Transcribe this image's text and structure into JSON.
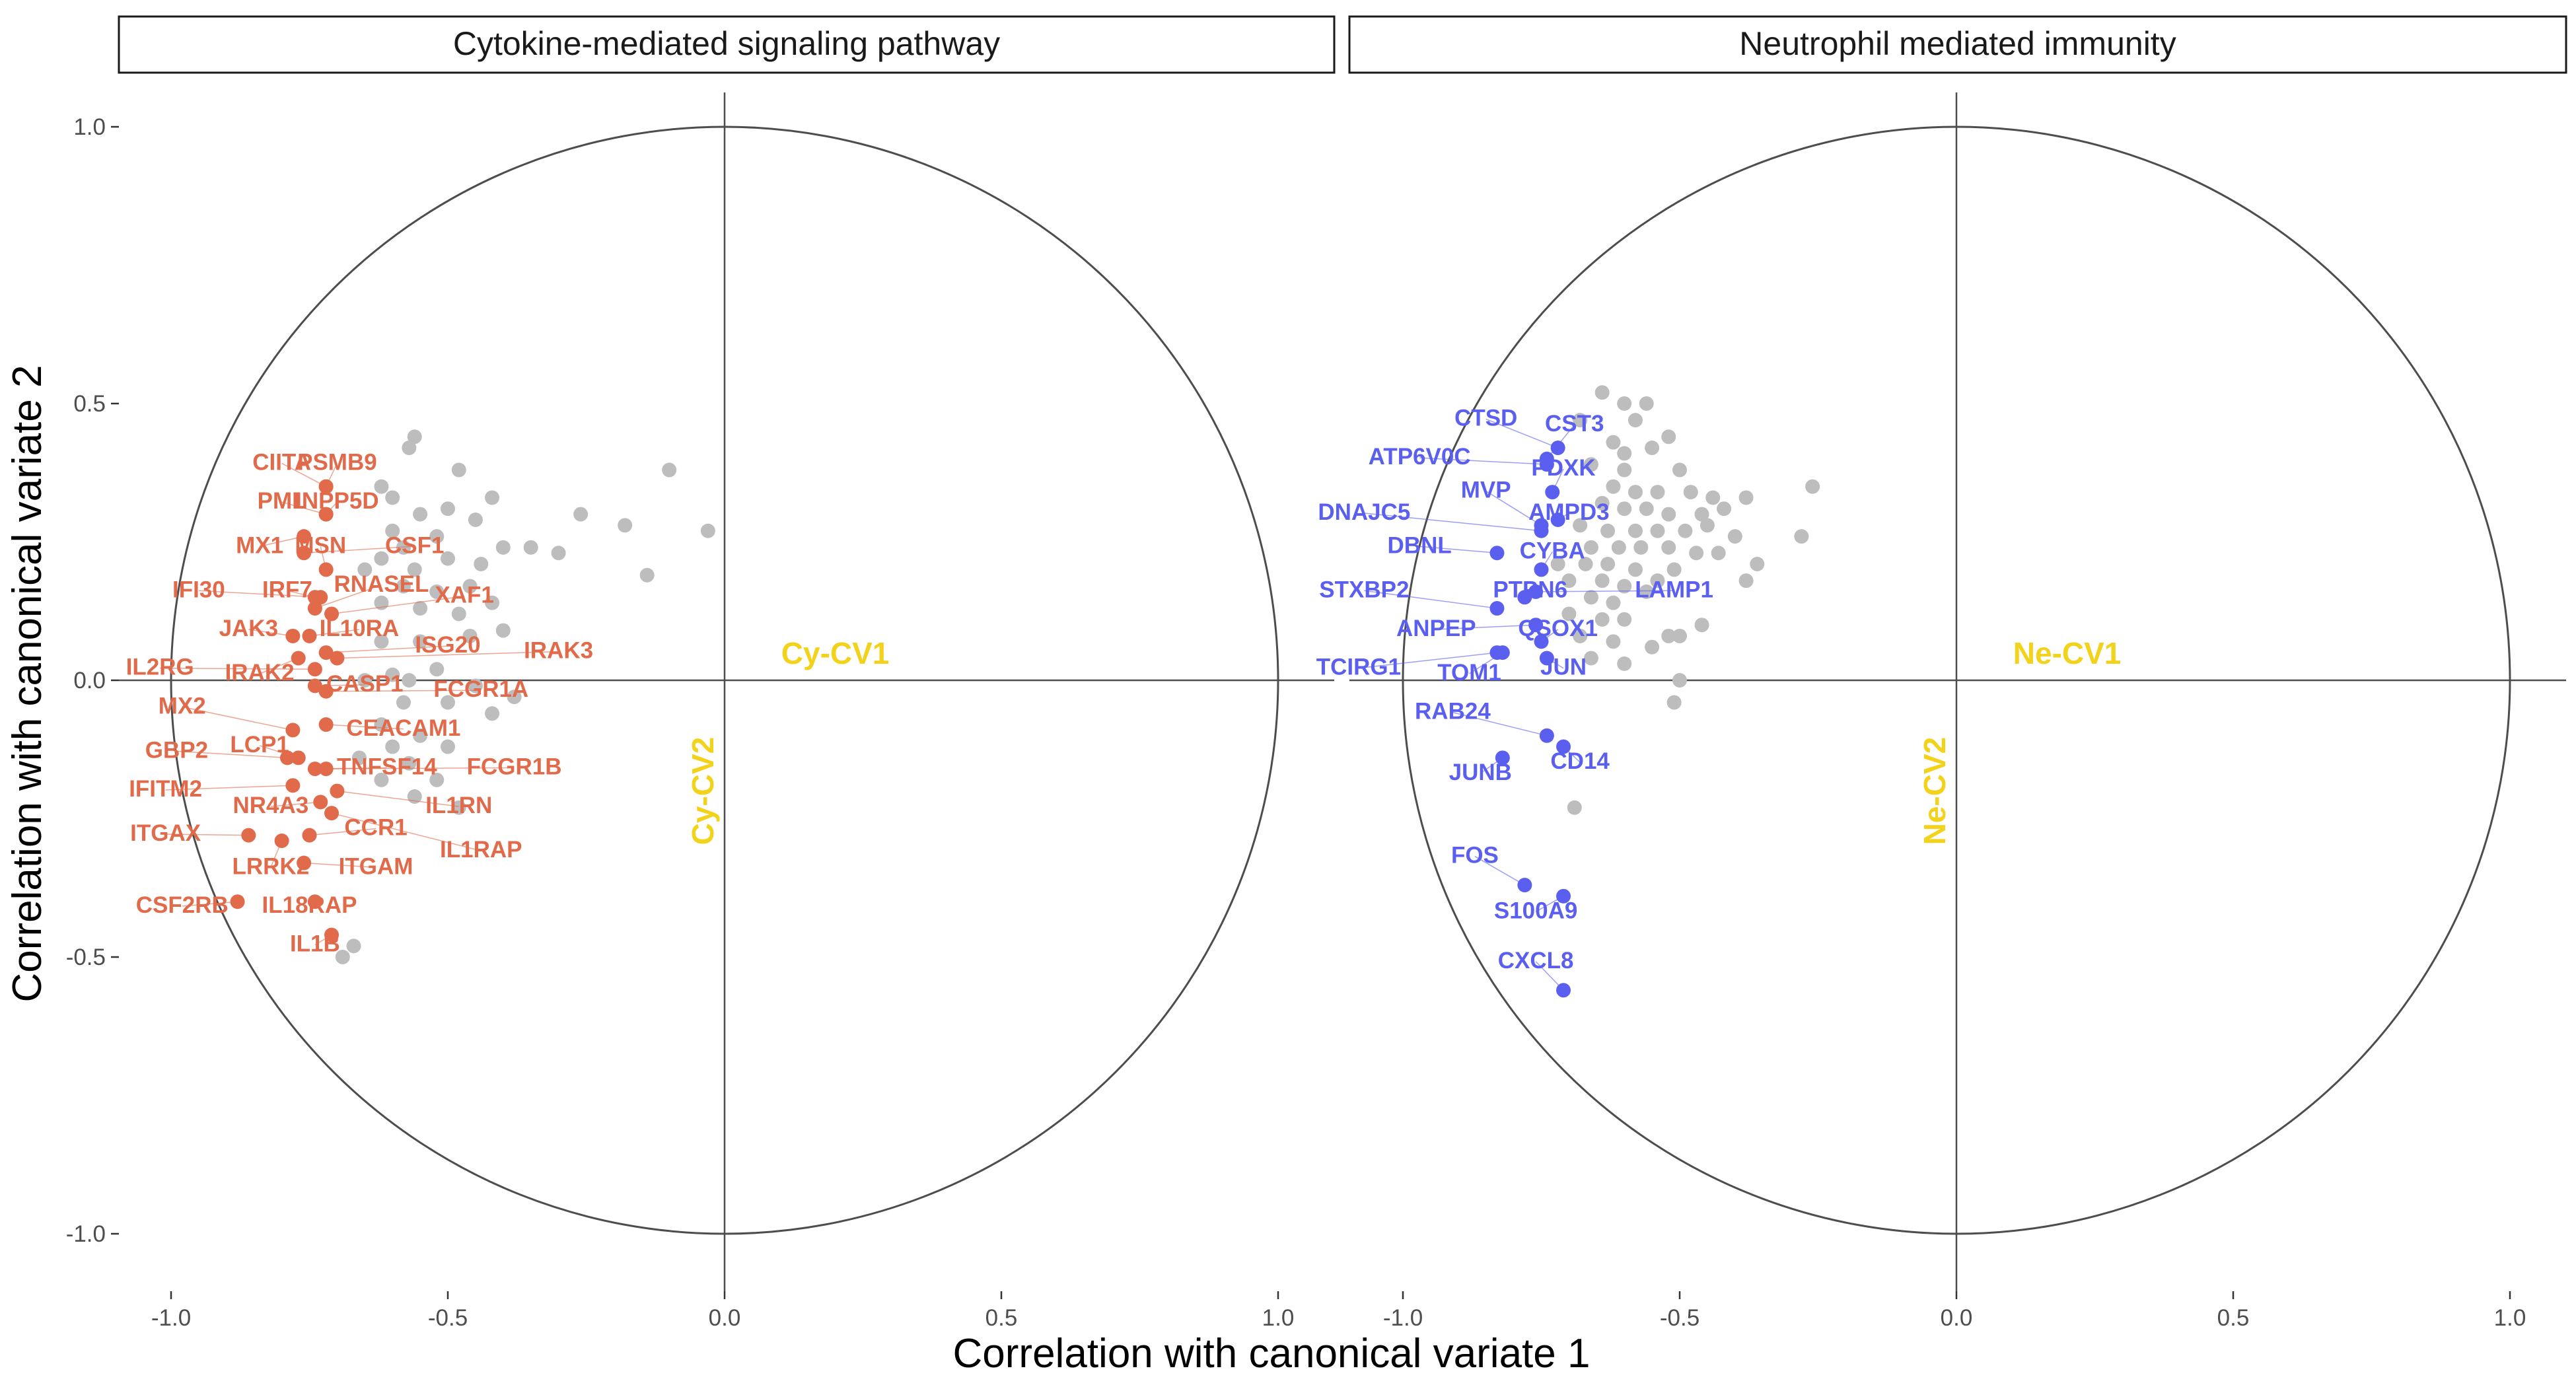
{
  "chart_data": {
    "type": "scatter",
    "xlabel": "Correlation with canonical variate 1",
    "ylabel": "Correlation with canonical variate 2",
    "xlim": [
      -1.1,
      1.1
    ],
    "ylim": [
      -1.1,
      1.1
    ],
    "x_ticks": [
      -1.0,
      -0.5,
      0.0,
      0.5,
      1.0
    ],
    "y_ticks": [
      1.0,
      0.5,
      0.0,
      -0.5,
      -1.0
    ],
    "x_tick_labels": [
      "-1.0",
      "-0.5",
      "0.0",
      "0.5",
      "1.0"
    ],
    "y_tick_labels": [
      "1.0",
      "0.5",
      "0.0",
      "-0.5",
      "-1.0"
    ],
    "grid": false,
    "unit_circle": true,
    "colors": {
      "grey_points": "#bdbdbd",
      "cytokine": "#e06a4a",
      "neutrophil": "#5b5ff0",
      "cv_label": "#f2d21b"
    },
    "panels": [
      {
        "title": "Cytokine-mediated signaling pathway",
        "cv_x_label": "Cy-CV1",
        "cv_y_label": "Cy-CV2",
        "highlight_color": "#e06a4a",
        "grey_points": [
          [
            -0.56,
            0.44
          ],
          [
            -0.57,
            0.42
          ],
          [
            -0.48,
            0.38
          ],
          [
            -0.62,
            0.35
          ],
          [
            -0.6,
            0.33
          ],
          [
            -0.5,
            0.31
          ],
          [
            -0.42,
            0.33
          ],
          [
            -0.1,
            0.38
          ],
          [
            -0.26,
            0.3
          ],
          [
            -0.18,
            0.28
          ],
          [
            -0.03,
            0.27
          ],
          [
            -0.55,
            0.3
          ],
          [
            -0.45,
            0.29
          ],
          [
            -0.52,
            0.26
          ],
          [
            -0.4,
            0.24
          ],
          [
            -0.35,
            0.24
          ],
          [
            -0.3,
            0.23
          ],
          [
            -0.14,
            0.19
          ],
          [
            -0.6,
            0.27
          ],
          [
            -0.58,
            0.24
          ],
          [
            -0.62,
            0.22
          ],
          [
            -0.56,
            0.2
          ],
          [
            -0.5,
            0.22
          ],
          [
            -0.44,
            0.21
          ],
          [
            -0.65,
            0.2
          ],
          [
            -0.58,
            0.17
          ],
          [
            -0.52,
            0.16
          ],
          [
            -0.46,
            0.17
          ],
          [
            -0.62,
            0.14
          ],
          [
            -0.55,
            0.13
          ],
          [
            -0.48,
            0.12
          ],
          [
            -0.42,
            0.14
          ],
          [
            -0.4,
            0.09
          ],
          [
            -0.46,
            0.08
          ],
          [
            -0.55,
            0.07
          ],
          [
            -0.62,
            0.07
          ],
          [
            -0.52,
            0.02
          ],
          [
            -0.6,
            0.01
          ],
          [
            -0.65,
            0.0
          ],
          [
            -0.57,
            0.0
          ],
          [
            -0.45,
            -0.01
          ],
          [
            -0.38,
            -0.03
          ],
          [
            -0.42,
            -0.06
          ],
          [
            -0.5,
            -0.04
          ],
          [
            -0.58,
            -0.04
          ],
          [
            -0.62,
            -0.08
          ],
          [
            -0.55,
            -0.1
          ],
          [
            -0.5,
            -0.12
          ],
          [
            -0.6,
            -0.12
          ],
          [
            -0.66,
            -0.14
          ],
          [
            -0.57,
            -0.15
          ],
          [
            -0.52,
            -0.18
          ],
          [
            -0.62,
            -0.18
          ],
          [
            -0.56,
            -0.21
          ],
          [
            -0.48,
            -0.23
          ],
          [
            -0.67,
            -0.48
          ],
          [
            -0.69,
            -0.5
          ]
        ],
        "points": [
          {
            "label": "PSMB9",
            "x": -0.72,
            "y": 0.35,
            "lx": -0.7,
            "ly": 0.38
          },
          {
            "label": "CIITA",
            "x": -0.72,
            "y": 0.35,
            "lx": -0.8,
            "ly": 0.38
          },
          {
            "label": "PML",
            "x": -0.72,
            "y": 0.3,
            "lx": -0.8,
            "ly": 0.31
          },
          {
            "label": "INPP5D",
            "x": -0.72,
            "y": 0.3,
            "lx": -0.7,
            "ly": 0.31
          },
          {
            "label": "MX1",
            "x": -0.76,
            "y": 0.26,
            "lx": -0.84,
            "ly": 0.23
          },
          {
            "label": "MSN",
            "x": -0.72,
            "y": 0.2,
            "lx": -0.73,
            "ly": 0.23
          },
          {
            "label": "CSF1",
            "x": -0.76,
            "y": 0.23,
            "lx": -0.56,
            "ly": 0.23
          },
          {
            "label": "IFI30",
            "x": -0.73,
            "y": 0.15,
            "lx": -0.95,
            "ly": 0.15
          },
          {
            "label": "IRF7",
            "x": -0.74,
            "y": 0.15,
            "lx": -0.79,
            "ly": 0.15
          },
          {
            "label": "RNASEL",
            "x": -0.74,
            "y": 0.13,
            "lx": -0.62,
            "ly": 0.16
          },
          {
            "label": "XAF1",
            "x": -0.71,
            "y": 0.12,
            "lx": -0.47,
            "ly": 0.14
          },
          {
            "label": "JAK3",
            "x": -0.78,
            "y": 0.08,
            "lx": -0.86,
            "ly": 0.08
          },
          {
            "label": "IL10RA",
            "x": -0.75,
            "y": 0.08,
            "lx": -0.66,
            "ly": 0.08
          },
          {
            "label": "ISG20",
            "x": -0.72,
            "y": 0.05,
            "lx": -0.5,
            "ly": 0.05
          },
          {
            "label": "IRAK3",
            "x": -0.7,
            "y": 0.04,
            "lx": -0.3,
            "ly": 0.04
          },
          {
            "label": "IL2RG",
            "x": -0.74,
            "y": 0.02,
            "lx": -1.02,
            "ly": 0.01
          },
          {
            "label": "IRAK2",
            "x": -0.77,
            "y": 0.04,
            "lx": -0.84,
            "ly": 0.0
          },
          {
            "label": "CASP1",
            "x": -0.74,
            "y": -0.01,
            "lx": -0.65,
            "ly": -0.02
          },
          {
            "label": "FCGR1A",
            "x": -0.72,
            "y": -0.02,
            "lx": -0.44,
            "ly": -0.03
          },
          {
            "label": "MX2",
            "x": -0.78,
            "y": -0.09,
            "lx": -0.98,
            "ly": -0.06
          },
          {
            "label": "CEACAM1",
            "x": -0.72,
            "y": -0.08,
            "lx": -0.58,
            "ly": -0.1
          },
          {
            "label": "GBP2",
            "x": -0.79,
            "y": -0.14,
            "lx": -0.99,
            "ly": -0.14
          },
          {
            "label": "LCP1",
            "x": -0.77,
            "y": -0.14,
            "lx": -0.84,
            "ly": -0.13
          },
          {
            "label": "TNFSF14",
            "x": -0.74,
            "y": -0.16,
            "lx": -0.61,
            "ly": -0.17
          },
          {
            "label": "FCGR1B",
            "x": -0.72,
            "y": -0.16,
            "lx": -0.38,
            "ly": -0.17
          },
          {
            "label": "IFITM2",
            "x": -0.78,
            "y": -0.19,
            "lx": -1.01,
            "ly": -0.21
          },
          {
            "label": "NR4A3",
            "x": -0.73,
            "y": -0.22,
            "lx": -0.82,
            "ly": -0.24
          },
          {
            "label": "IL1RN",
            "x": -0.7,
            "y": -0.2,
            "lx": -0.48,
            "ly": -0.24
          },
          {
            "label": "ITGAX",
            "x": -0.86,
            "y": -0.28,
            "lx": -1.01,
            "ly": -0.29
          },
          {
            "label": "CCR1",
            "x": -0.75,
            "y": -0.28,
            "lx": -0.63,
            "ly": -0.28
          },
          {
            "label": "IL1RAP",
            "x": -0.71,
            "y": -0.24,
            "lx": -0.44,
            "ly": -0.32
          },
          {
            "label": "LRRK2",
            "x": -0.8,
            "y": -0.29,
            "lx": -0.82,
            "ly": -0.35
          },
          {
            "label": "ITGAM",
            "x": -0.76,
            "y": -0.33,
            "lx": -0.63,
            "ly": -0.35
          },
          {
            "label": "CSF2RB",
            "x": -0.88,
            "y": -0.4,
            "lx": -0.98,
            "ly": -0.42
          },
          {
            "label": "IL18RAP",
            "x": -0.74,
            "y": -0.4,
            "lx": -0.75,
            "ly": -0.42
          },
          {
            "label": "IL1B",
            "x": -0.71,
            "y": -0.46,
            "lx": -0.74,
            "ly": -0.49
          }
        ]
      },
      {
        "title": "Neutrophil mediated immunity",
        "cv_x_label": "Ne-CV1",
        "cv_y_label": "Ne-CV2",
        "highlight_color": "#5b5ff0",
        "grey_points": [
          [
            -0.64,
            0.52
          ],
          [
            -0.6,
            0.5
          ],
          [
            -0.56,
            0.5
          ],
          [
            -0.68,
            0.47
          ],
          [
            -0.58,
            0.47
          ],
          [
            -0.52,
            0.44
          ],
          [
            -0.62,
            0.43
          ],
          [
            -0.6,
            0.41
          ],
          [
            -0.55,
            0.42
          ],
          [
            -0.66,
            0.39
          ],
          [
            -0.6,
            0.38
          ],
          [
            -0.5,
            0.38
          ],
          [
            -0.62,
            0.35
          ],
          [
            -0.58,
            0.34
          ],
          [
            -0.54,
            0.34
          ],
          [
            -0.48,
            0.34
          ],
          [
            -0.44,
            0.33
          ],
          [
            -0.26,
            0.35
          ],
          [
            -0.64,
            0.32
          ],
          [
            -0.6,
            0.31
          ],
          [
            -0.56,
            0.31
          ],
          [
            -0.52,
            0.3
          ],
          [
            -0.46,
            0.3
          ],
          [
            -0.42,
            0.31
          ],
          [
            -0.38,
            0.33
          ],
          [
            -0.68,
            0.28
          ],
          [
            -0.63,
            0.27
          ],
          [
            -0.58,
            0.27
          ],
          [
            -0.54,
            0.27
          ],
          [
            -0.49,
            0.27
          ],
          [
            -0.45,
            0.28
          ],
          [
            -0.4,
            0.26
          ],
          [
            -0.28,
            0.26
          ],
          [
            -0.66,
            0.24
          ],
          [
            -0.61,
            0.24
          ],
          [
            -0.57,
            0.24
          ],
          [
            -0.52,
            0.24
          ],
          [
            -0.47,
            0.23
          ],
          [
            -0.43,
            0.23
          ],
          [
            -0.72,
            0.21
          ],
          [
            -0.67,
            0.21
          ],
          [
            -0.63,
            0.21
          ],
          [
            -0.58,
            0.2
          ],
          [
            -0.51,
            0.2
          ],
          [
            -0.36,
            0.21
          ],
          [
            -0.7,
            0.18
          ],
          [
            -0.64,
            0.18
          ],
          [
            -0.6,
            0.17
          ],
          [
            -0.54,
            0.18
          ],
          [
            -0.66,
            0.15
          ],
          [
            -0.62,
            0.14
          ],
          [
            -0.56,
            0.16
          ],
          [
            -0.38,
            0.18
          ],
          [
            -0.7,
            0.12
          ],
          [
            -0.64,
            0.11
          ],
          [
            -0.6,
            0.11
          ],
          [
            -0.46,
            0.1
          ],
          [
            -0.68,
            0.08
          ],
          [
            -0.62,
            0.07
          ],
          [
            -0.55,
            0.06
          ],
          [
            -0.5,
            0.08
          ],
          [
            -0.66,
            0.04
          ],
          [
            -0.6,
            0.03
          ],
          [
            -0.52,
            0.08
          ],
          [
            -0.5,
            0.0
          ],
          [
            -0.51,
            -0.04
          ],
          [
            -0.69,
            -0.23
          ]
        ],
        "points": [
          {
            "label": "CTSD",
            "x": -0.72,
            "y": 0.42,
            "lx": -0.85,
            "ly": 0.46
          },
          {
            "label": "CST3",
            "x": -0.74,
            "y": 0.4,
            "lx": -0.69,
            "ly": 0.45
          },
          {
            "label": "ATP6V0C",
            "x": -0.74,
            "y": 0.39,
            "lx": -0.97,
            "ly": 0.39
          },
          {
            "label": "PDXK",
            "x": -0.73,
            "y": 0.34,
            "lx": -0.71,
            "ly": 0.37
          },
          {
            "label": "MVP",
            "x": -0.75,
            "y": 0.28,
            "lx": -0.85,
            "ly": 0.33
          },
          {
            "label": "AMPD3",
            "x": -0.72,
            "y": 0.29,
            "lx": -0.7,
            "ly": 0.29
          },
          {
            "label": "DNAJC5",
            "x": -0.75,
            "y": 0.27,
            "lx": -1.07,
            "ly": 0.29
          },
          {
            "label": "DBNL",
            "x": -0.83,
            "y": 0.23,
            "lx": -0.97,
            "ly": 0.23
          },
          {
            "label": "CYBA",
            "x": -0.75,
            "y": 0.2,
            "lx": -0.73,
            "ly": 0.22
          },
          {
            "label": "STXBP2",
            "x": -0.83,
            "y": 0.13,
            "lx": -1.07,
            "ly": 0.15
          },
          {
            "label": "PTPN6",
            "x": -0.78,
            "y": 0.15,
            "lx": -0.77,
            "ly": 0.15
          },
          {
            "label": "LAMP1",
            "x": -0.76,
            "y": 0.16,
            "lx": -0.51,
            "ly": 0.15
          },
          {
            "label": "ANPEP",
            "x": -0.76,
            "y": 0.1,
            "lx": -0.94,
            "ly": 0.08
          },
          {
            "label": "QSOX1",
            "x": -0.75,
            "y": 0.07,
            "lx": -0.72,
            "ly": 0.08
          },
          {
            "label": "TCIRG1",
            "x": -0.83,
            "y": 0.05,
            "lx": -1.08,
            "ly": 0.01
          },
          {
            "label": "TOM1",
            "x": -0.82,
            "y": 0.05,
            "lx": -0.88,
            "ly": 0.0
          },
          {
            "label": "JUN",
            "x": -0.74,
            "y": 0.04,
            "lx": -0.71,
            "ly": 0.01
          },
          {
            "label": "RAB24",
            "x": -0.74,
            "y": -0.1,
            "lx": -0.91,
            "ly": -0.07
          },
          {
            "label": "JUNB",
            "x": -0.82,
            "y": -0.14,
            "lx": -0.86,
            "ly": -0.18
          },
          {
            "label": "CD14",
            "x": -0.71,
            "y": -0.12,
            "lx": -0.68,
            "ly": -0.16
          },
          {
            "label": "FOS",
            "x": -0.78,
            "y": -0.37,
            "lx": -0.87,
            "ly": -0.33
          },
          {
            "label": "S100A9",
            "x": -0.71,
            "y": -0.39,
            "lx": -0.76,
            "ly": -0.43
          },
          {
            "label": "CXCL8",
            "x": -0.71,
            "y": -0.56,
            "lx": -0.76,
            "ly": -0.52
          }
        ]
      }
    ]
  }
}
